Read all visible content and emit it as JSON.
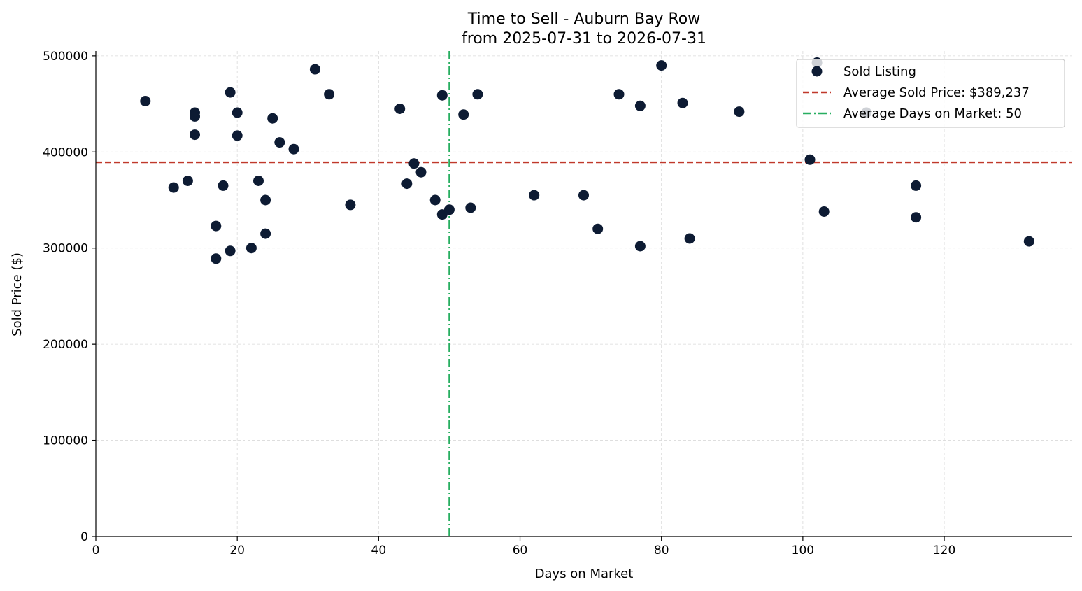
{
  "chart_data": {
    "type": "scatter",
    "title": "Time to Sell - Auburn Bay Row",
    "subtitle": "from 2025-07-31 to 2026-07-31",
    "xlabel": "Days on Market",
    "ylabel": "Sold Price ($)",
    "xlim": [
      0,
      138
    ],
    "ylim": [
      0,
      505000
    ],
    "xticks": [
      0,
      20,
      40,
      60,
      80,
      100,
      120
    ],
    "xtick_labels": [
      "0",
      "20",
      "40",
      "60",
      "80",
      "100",
      "120"
    ],
    "yticks": [
      0,
      100000,
      200000,
      300000,
      400000,
      500000
    ],
    "ytick_labels": [
      "0",
      "100000",
      "200000",
      "300000",
      "400000",
      "500000"
    ],
    "grid": true,
    "legend_position": "top-right",
    "colors": {
      "points": "#0d1b33",
      "avg_price": "#c0392b",
      "avg_days": "#27ae60",
      "grid": "#d9d9d9"
    },
    "series": [
      {
        "name": "Sold Listing",
        "points": [
          [
            7,
            453000
          ],
          [
            11,
            363000
          ],
          [
            13,
            370000
          ],
          [
            14,
            441000
          ],
          [
            14,
            437000
          ],
          [
            14,
            418000
          ],
          [
            17,
            323000
          ],
          [
            17,
            289000
          ],
          [
            18,
            365000
          ],
          [
            19,
            462000
          ],
          [
            19,
            297000
          ],
          [
            20,
            441000
          ],
          [
            20,
            417000
          ],
          [
            22,
            300000
          ],
          [
            23,
            370000
          ],
          [
            24,
            350000
          ],
          [
            24,
            315000
          ],
          [
            25,
            435000
          ],
          [
            26,
            410000
          ],
          [
            28,
            403000
          ],
          [
            31,
            486000
          ],
          [
            33,
            460000
          ],
          [
            36,
            345000
          ],
          [
            43,
            445000
          ],
          [
            44,
            367000
          ],
          [
            45,
            388000
          ],
          [
            46,
            379000
          ],
          [
            48,
            350000
          ],
          [
            49,
            459000
          ],
          [
            49,
            335000
          ],
          [
            50,
            340000
          ],
          [
            52,
            439000
          ],
          [
            53,
            342000
          ],
          [
            54,
            460000
          ],
          [
            62,
            355000
          ],
          [
            69,
            355000
          ],
          [
            71,
            320000
          ],
          [
            74,
            460000
          ],
          [
            77,
            448000
          ],
          [
            77,
            302000
          ],
          [
            80,
            490000
          ],
          [
            83,
            451000
          ],
          [
            84,
            310000
          ],
          [
            91,
            442000
          ],
          [
            101,
            392000
          ],
          [
            102,
            493000
          ],
          [
            103,
            338000
          ],
          [
            109,
            441000
          ],
          [
            116,
            365000
          ],
          [
            116,
            332000
          ],
          [
            132,
            307000
          ]
        ]
      }
    ],
    "reference_lines": [
      {
        "name": "Average Sold Price: $389,237",
        "orientation": "horizontal",
        "value": 389237
      },
      {
        "name": "Average Days on Market: 50",
        "orientation": "vertical",
        "value": 50
      }
    ]
  }
}
